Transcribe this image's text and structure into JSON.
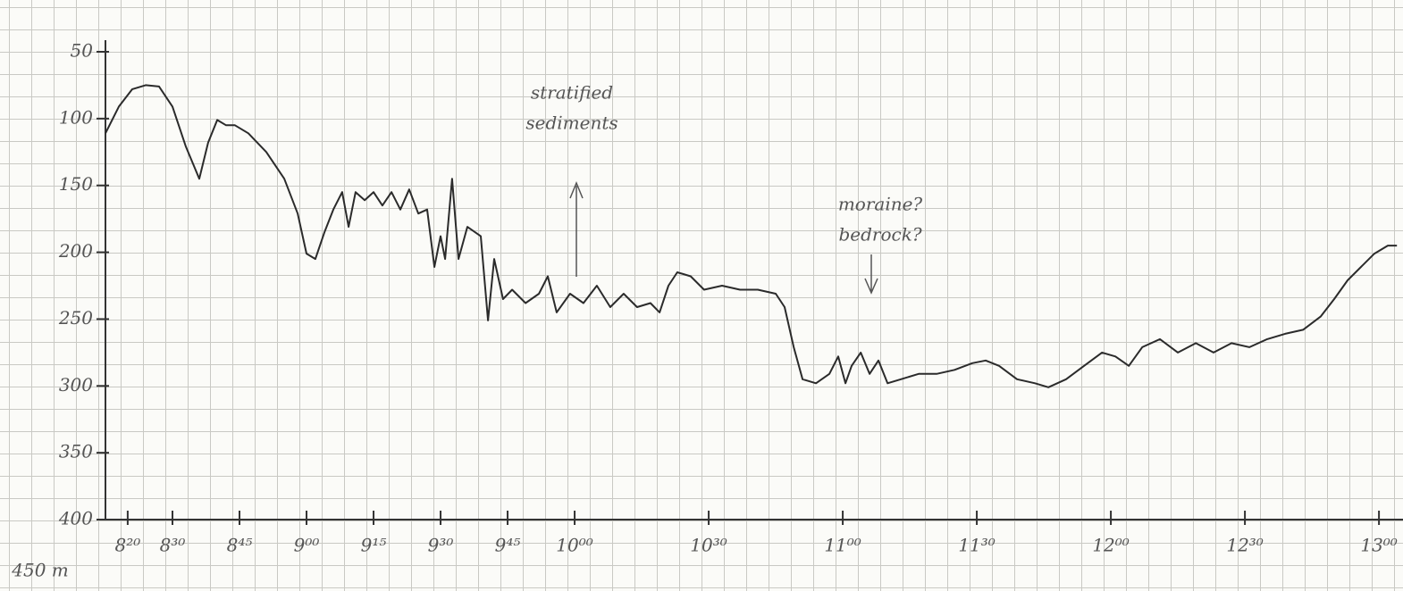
{
  "chart_data": {
    "type": "line",
    "x": [
      8.25,
      8.3,
      8.35,
      8.4,
      8.45,
      8.5,
      8.55,
      8.6,
      8.633,
      8.667,
      8.7,
      8.733,
      8.783,
      8.85,
      8.917,
      8.967,
      9,
      9.033,
      9.067,
      9.1,
      9.133,
      9.157,
      9.183,
      9.217,
      9.25,
      9.283,
      9.317,
      9.35,
      9.383,
      9.417,
      9.45,
      9.477,
      9.5,
      9.517,
      9.543,
      9.567,
      9.6,
      9.65,
      9.677,
      9.7,
      9.733,
      9.767,
      9.817,
      9.867,
      9.9,
      9.933,
      9.983,
      10.033,
      10.083,
      10.133,
      10.183,
      10.233,
      10.283,
      10.317,
      10.35,
      10.383,
      10.433,
      10.483,
      10.55,
      10.617,
      10.683,
      10.75,
      10.783,
      10.817,
      10.85,
      10.9,
      10.95,
      10.983,
      11.01,
      11.033,
      11.067,
      11.1,
      11.133,
      11.167,
      11.217,
      11.283,
      11.35,
      11.417,
      11.483,
      11.533,
      11.583,
      11.65,
      11.717,
      11.767,
      11.833,
      11.9,
      11.967,
      12.017,
      12.067,
      12.117,
      12.183,
      12.25,
      12.317,
      12.383,
      12.45,
      12.517,
      12.583,
      12.65,
      12.717,
      12.783,
      12.833,
      12.883,
      12.933,
      12.983,
      13.033,
      13.067
    ],
    "series": [
      {
        "color": "#2b2b2b",
        "values": [
          111,
          91,
          78,
          75,
          76,
          91,
          121,
          145,
          118,
          101,
          105,
          105,
          111,
          125,
          145,
          171,
          201,
          205,
          185,
          168,
          155,
          181,
          155,
          161,
          155,
          165,
          155,
          168,
          153,
          171,
          168,
          211,
          188,
          205,
          145,
          205,
          181,
          188,
          251,
          205,
          235,
          228,
          238,
          231,
          218,
          245,
          231,
          238,
          225,
          241,
          231,
          241,
          238,
          245,
          225,
          215,
          218,
          228,
          225,
          228,
          228,
          231,
          241,
          271,
          295,
          298,
          291,
          278,
          298,
          285,
          275,
          291,
          281,
          298,
          295,
          291,
          291,
          288,
          283,
          281,
          285,
          295,
          298,
          301,
          295,
          285,
          275,
          278,
          285,
          271,
          265,
          275,
          268,
          275,
          268,
          271,
          265,
          261,
          258,
          248,
          235,
          221,
          211,
          201,
          195,
          195
        ]
      }
    ],
    "xlim": [
      8.25,
      13.083
    ],
    "xticks": [
      {
        "value": 8.333,
        "label": "8²⁰"
      },
      {
        "value": 8.5,
        "label": "8³⁰"
      },
      {
        "value": 8.75,
        "label": "8⁴⁵"
      },
      {
        "value": 9,
        "label": "9⁰⁰"
      },
      {
        "value": 9.25,
        "label": "9¹⁵"
      },
      {
        "value": 9.5,
        "label": "9³⁰"
      },
      {
        "value": 9.75,
        "label": "9⁴⁵"
      },
      {
        "value": 10,
        "label": "10⁰⁰"
      },
      {
        "value": 10.5,
        "label": "10³⁰"
      },
      {
        "value": 11,
        "label": "11⁰⁰"
      },
      {
        "value": 11.5,
        "label": "11³⁰"
      },
      {
        "value": 12,
        "label": "12⁰⁰"
      },
      {
        "value": 12.5,
        "label": "12³⁰"
      },
      {
        "value": 13,
        "label": "13⁰⁰"
      }
    ],
    "ylim": [
      400,
      50
    ],
    "yticks": [
      50,
      100,
      150,
      200,
      250,
      300,
      350,
      400
    ],
    "annotations": [
      [
        "stratified",
        "sediments"
      ],
      [
        "moraine?",
        "bedrock?"
      ],
      [
        "450 m"
      ]
    ]
  }
}
